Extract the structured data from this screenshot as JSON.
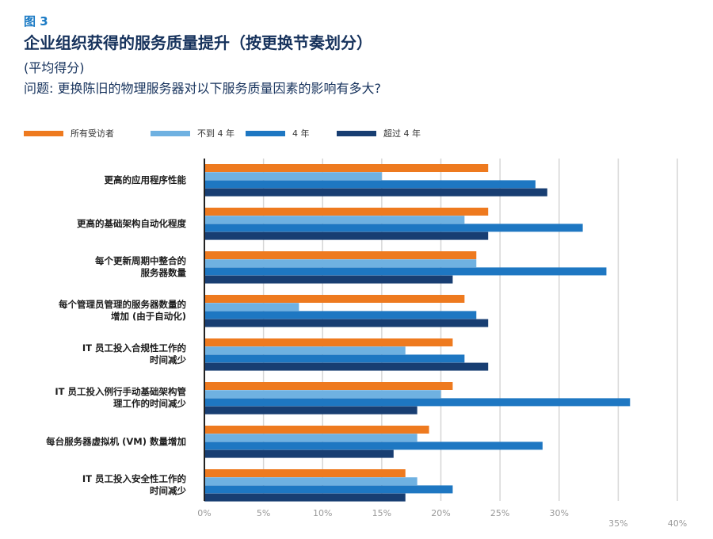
{
  "figure_label": "图 3",
  "title": "企业组织获得的服务质量提升（按更换节奏划分）",
  "subtitle": "(平均得分)",
  "question": "问题: 更换陈旧的物理服务器对以下服务质量因素的影响有多大?",
  "colors": {
    "s0": "#ee7a1f",
    "s1": "#6fb1e1",
    "s2": "#1e77c2",
    "s3": "#183e72",
    "grid": "#d6d6d6",
    "axis": "#222222",
    "tick": "#999999"
  },
  "chart_data": {
    "type": "bar",
    "orientation": "horizontal",
    "categories": [
      [
        "更高的应用程序性能"
      ],
      [
        "更高的基础架构自动化程度"
      ],
      [
        "每个更新周期中整合的",
        "服务器数量"
      ],
      [
        "每个管理员管理的服务器数量的",
        "增加 (由于自动化)"
      ],
      [
        "IT 员工投入合规性工作的",
        "时间减少"
      ],
      [
        "IT 员工投入例行手动基础架构管",
        "理工作的时间减少"
      ],
      [
        "每台服务器虚拟机 (VM) 数量增加"
      ],
      [
        "IT 员工投入安全性工作的",
        "时间减少"
      ]
    ],
    "series": [
      {
        "name": "所有受访者",
        "values": [
          24,
          24,
          23,
          22,
          21,
          21,
          19,
          17
        ]
      },
      {
        "name": "不到 4 年",
        "values": [
          15,
          22,
          23,
          8,
          17,
          20,
          18,
          18
        ]
      },
      {
        "name": "4 年",
        "values": [
          28,
          32,
          34,
          23,
          22,
          36,
          28.6,
          21
        ]
      },
      {
        "name": "超过 4 年",
        "values": [
          29,
          24,
          21,
          24,
          24,
          18,
          16,
          17
        ]
      }
    ],
    "x_ticks": [
      "0%",
      "5%",
      "10%",
      "15%",
      "20%",
      "25%",
      "30%",
      "35%",
      "40%"
    ],
    "xlim": [
      0,
      40
    ],
    "grid": true,
    "legend_position": "top"
  }
}
